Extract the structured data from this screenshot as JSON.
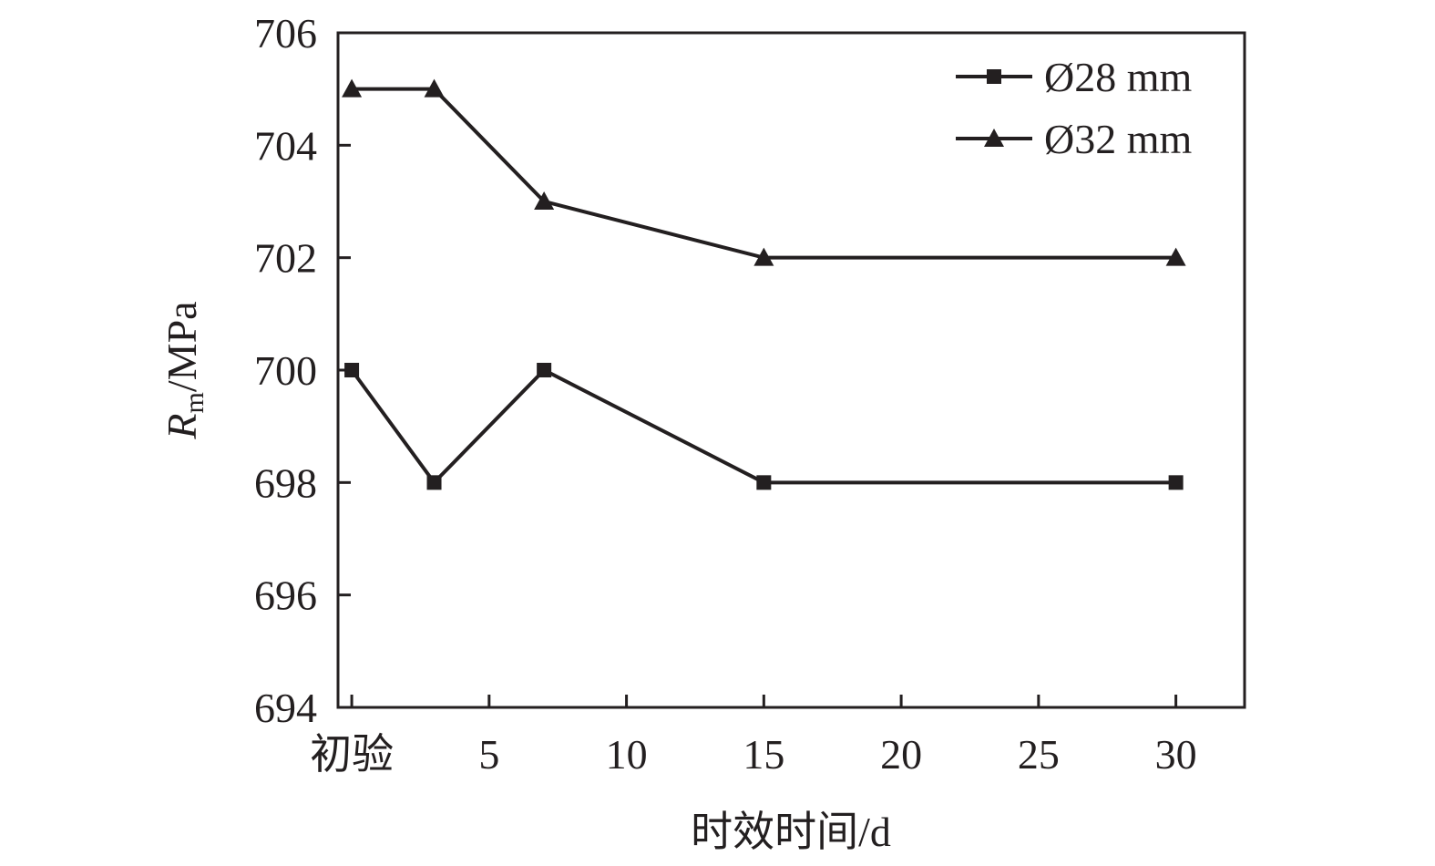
{
  "chart_data": {
    "type": "line",
    "xlabel": "时效时间/d",
    "ylabel_main": "R",
    "ylabel_sub": "m",
    "ylabel_unit": "/MPa",
    "xlim": [
      -0.5,
      32.5
    ],
    "ylim": [
      694,
      706
    ],
    "x_ticks": [
      {
        "value": 0,
        "label": "初验"
      },
      {
        "value": 5,
        "label": "5"
      },
      {
        "value": 10,
        "label": "10"
      },
      {
        "value": 15,
        "label": "15"
      },
      {
        "value": 20,
        "label": "20"
      },
      {
        "value": 25,
        "label": "25"
      },
      {
        "value": 30,
        "label": "30"
      }
    ],
    "y_ticks": [
      694,
      696,
      698,
      700,
      702,
      704,
      706
    ],
    "grid": false,
    "legend_position": "top-right",
    "color": "#231f20",
    "series": [
      {
        "name": "Ø28 mm",
        "marker": "square",
        "x": [
          0,
          3,
          7,
          15,
          30
        ],
        "y": [
          700,
          698,
          700,
          698,
          698
        ]
      },
      {
        "name": "Ø32 mm",
        "marker": "triangle",
        "x": [
          0,
          3,
          7,
          15,
          30
        ],
        "y": [
          705,
          705,
          703,
          702,
          702
        ]
      }
    ]
  }
}
